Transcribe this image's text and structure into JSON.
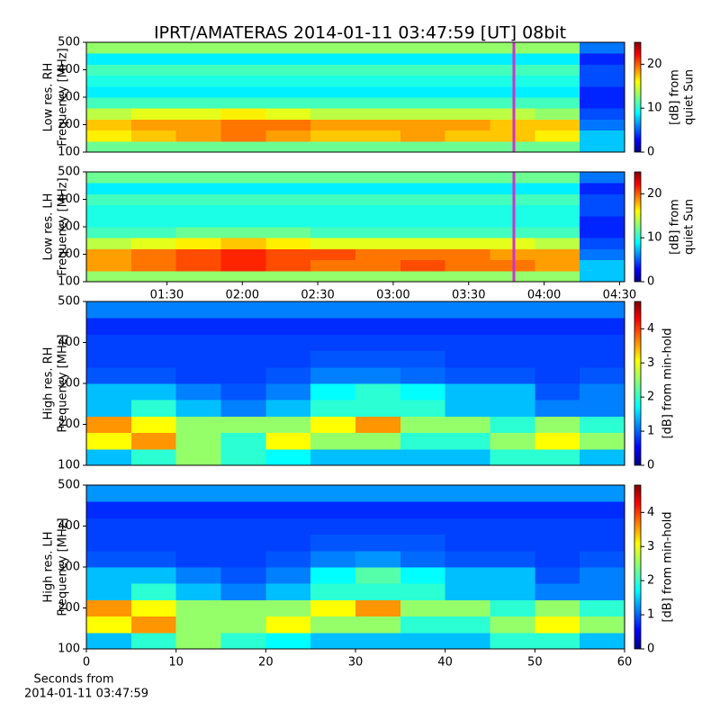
{
  "chart_data": [
    {
      "type": "heatmap",
      "title": "IPRT/AMATERAS 2014-01-11 03:47:59 [UT]   08bit",
      "ylabel": [
        "Low res. RH",
        "Frequency [MHz]"
      ],
      "xlim": [
        58,
        272
      ],
      "ylim": [
        100,
        500
      ],
      "yticks": [
        100,
        200,
        300,
        400,
        500
      ],
      "marker": {
        "value": 227.98,
        "color": "#cc33cc"
      },
      "colorbar": {
        "label": [
          "[dB] from",
          "quiet Sun"
        ],
        "clim": [
          0,
          25
        ],
        "ticks": [
          0,
          10,
          20
        ]
      },
      "z": [
        [
          12,
          12,
          12,
          12,
          12,
          12,
          12,
          12,
          12,
          12,
          12,
          8
        ],
        [
          16,
          17,
          18,
          19,
          18,
          17,
          17,
          18,
          17,
          17,
          16,
          8
        ],
        [
          17,
          18,
          18,
          19,
          19,
          18,
          18,
          18,
          18,
          17,
          17,
          6
        ],
        [
          14,
          15,
          15,
          16,
          15,
          14,
          14,
          14,
          14,
          14,
          13,
          5
        ],
        [
          11,
          11,
          11,
          11,
          11,
          11,
          11,
          11,
          11,
          11,
          11,
          4
        ],
        [
          9,
          9,
          9,
          9,
          9,
          9,
          9,
          9,
          9,
          9,
          9,
          4
        ],
        [
          10,
          10,
          10,
          10,
          10,
          10,
          10,
          10,
          10,
          10,
          10,
          5
        ],
        [
          11,
          11,
          11,
          11,
          11,
          11,
          11,
          11,
          11,
          11,
          11,
          5
        ],
        [
          9,
          9,
          9,
          9,
          9,
          9,
          9,
          9,
          9,
          9,
          9,
          4
        ],
        [
          13,
          13,
          13,
          13,
          13,
          13,
          13,
          13,
          13,
          13,
          13,
          6
        ]
      ]
    },
    {
      "type": "heatmap",
      "ylabel": [
        "Low res. LH",
        "Frequency [MHz]"
      ],
      "xlim": [
        58,
        272
      ],
      "ylim": [
        100,
        500
      ],
      "yticks": [
        100,
        200,
        300,
        400,
        500
      ],
      "xticks": [
        {
          "value": 90,
          "label": "01:30"
        },
        {
          "value": 120,
          "label": "02:00"
        },
        {
          "value": 150,
          "label": "02:30"
        },
        {
          "value": 180,
          "label": "03:00"
        },
        {
          "value": 210,
          "label": "03:30"
        },
        {
          "value": 240,
          "label": "04:00"
        },
        {
          "value": 270,
          "label": "04:30"
        }
      ],
      "marker": {
        "value": 227.98,
        "color": "#cc33cc"
      },
      "colorbar": {
        "label": [
          "[dB] from",
          "quiet Sun"
        ],
        "clim": [
          0,
          25
        ],
        "ticks": [
          0,
          10,
          20
        ]
      },
      "z": [
        [
          13,
          13,
          13,
          13,
          13,
          13,
          13,
          13,
          13,
          13,
          13,
          8
        ],
        [
          18,
          19,
          20,
          21,
          20,
          19,
          19,
          20,
          19,
          19,
          18,
          8
        ],
        [
          18,
          19,
          20,
          21,
          20,
          20,
          19,
          19,
          19,
          18,
          18,
          6
        ],
        [
          14,
          15,
          16,
          17,
          16,
          15,
          15,
          15,
          15,
          15,
          14,
          5
        ],
        [
          11,
          11,
          12,
          12,
          12,
          11,
          11,
          11,
          11,
          11,
          11,
          4
        ],
        [
          10,
          10,
          10,
          10,
          10,
          10,
          10,
          10,
          10,
          10,
          10,
          4
        ],
        [
          10,
          10,
          10,
          10,
          10,
          10,
          10,
          10,
          10,
          10,
          10,
          5
        ],
        [
          11,
          11,
          11,
          11,
          11,
          11,
          11,
          11,
          11,
          11,
          11,
          5
        ],
        [
          9,
          9,
          9,
          9,
          9,
          9,
          9,
          9,
          9,
          9,
          9,
          4
        ],
        [
          12,
          12,
          12,
          12,
          12,
          12,
          12,
          12,
          12,
          12,
          12,
          6
        ]
      ]
    },
    {
      "type": "heatmap",
      "ylabel": [
        "High res. RH",
        "Frequency [MHz]"
      ],
      "xlim": [
        0,
        60
      ],
      "ylim": [
        100,
        500
      ],
      "yticks": [
        100,
        200,
        300,
        400,
        500
      ],
      "colorbar": {
        "label": [
          "[dB] from min-hold"
        ],
        "clim": [
          0,
          4.8
        ],
        "ticks": [
          0,
          1,
          2,
          3,
          4
        ]
      },
      "z": [
        [
          1.5,
          2.0,
          2.5,
          2.0,
          1.8,
          1.5,
          1.5,
          1.5,
          1.5,
          2.0,
          2.0,
          1.5
        ],
        [
          3.0,
          3.5,
          2.5,
          2.0,
          3.0,
          2.5,
          2.5,
          2.0,
          2.0,
          2.5,
          3.0,
          2.5
        ],
        [
          3.5,
          3.0,
          2.5,
          2.5,
          2.5,
          3.0,
          3.5,
          2.5,
          2.5,
          2.0,
          2.5,
          2.0
        ],
        [
          1.5,
          2.0,
          1.5,
          1.2,
          1.5,
          2.0,
          2.0,
          2.0,
          1.5,
          1.5,
          1.2,
          1.2
        ],
        [
          1.5,
          1.5,
          1.2,
          1.0,
          1.2,
          1.8,
          2.0,
          1.8,
          1.5,
          1.5,
          1.0,
          1.2
        ],
        [
          1.0,
          1.0,
          0.9,
          0.9,
          1.0,
          1.2,
          1.2,
          1.1,
          1.0,
          1.0,
          0.9,
          1.0
        ],
        [
          0.9,
          0.9,
          0.9,
          0.9,
          0.9,
          1.0,
          1.0,
          1.0,
          0.9,
          0.9,
          0.9,
          0.9
        ],
        [
          0.9,
          0.9,
          0.9,
          0.9,
          0.9,
          0.9,
          0.9,
          0.9,
          0.9,
          0.9,
          0.9,
          0.9
        ],
        [
          0.8,
          0.8,
          0.8,
          0.8,
          0.8,
          0.8,
          0.8,
          0.8,
          0.8,
          0.8,
          0.8,
          0.8
        ],
        [
          1.2,
          1.2,
          1.2,
          1.2,
          1.2,
          1.2,
          1.2,
          1.2,
          1.2,
          1.2,
          1.2,
          1.2
        ]
      ]
    },
    {
      "type": "heatmap",
      "ylabel": [
        "High res. LH",
        "Frequency [MHz]"
      ],
      "xlabel": [
        "Seconds from",
        "2014-01-11 03:47:59"
      ],
      "xlim": [
        0,
        60
      ],
      "ylim": [
        100,
        500
      ],
      "yticks": [
        100,
        200,
        300,
        400,
        500
      ],
      "xticks": [
        0,
        10,
        20,
        30,
        40,
        50,
        60
      ],
      "colorbar": {
        "label": [
          "[dB] from min-hold"
        ],
        "clim": [
          0,
          4.8
        ],
        "ticks": [
          0,
          1,
          2,
          3,
          4
        ]
      },
      "z": [
        [
          1.5,
          2.0,
          2.5,
          2.0,
          1.8,
          1.5,
          1.5,
          1.5,
          1.5,
          2.0,
          2.0,
          1.5
        ],
        [
          3.0,
          3.5,
          2.5,
          2.5,
          3.0,
          2.5,
          2.5,
          2.0,
          2.0,
          2.5,
          3.0,
          2.5
        ],
        [
          3.5,
          3.0,
          2.5,
          2.5,
          2.5,
          3.0,
          3.5,
          2.5,
          2.5,
          2.0,
          2.5,
          2.0
        ],
        [
          1.5,
          2.0,
          1.5,
          1.2,
          1.5,
          2.0,
          2.0,
          2.0,
          1.5,
          1.5,
          1.2,
          1.2
        ],
        [
          1.5,
          1.5,
          1.2,
          1.0,
          1.2,
          1.8,
          2.2,
          1.8,
          1.5,
          1.5,
          1.0,
          1.2
        ],
        [
          1.0,
          1.0,
          0.9,
          0.9,
          1.0,
          1.2,
          1.3,
          1.1,
          1.0,
          1.0,
          0.9,
          1.0
        ],
        [
          0.9,
          0.9,
          0.9,
          0.9,
          0.9,
          1.0,
          1.0,
          1.0,
          0.9,
          0.9,
          0.9,
          0.9
        ],
        [
          0.9,
          0.9,
          0.9,
          0.9,
          0.9,
          0.9,
          0.9,
          0.9,
          0.9,
          0.9,
          0.9,
          0.9
        ],
        [
          0.8,
          0.8,
          0.8,
          0.8,
          0.8,
          0.8,
          0.8,
          0.8,
          0.8,
          0.8,
          0.8,
          0.8
        ],
        [
          1.3,
          1.3,
          1.3,
          1.3,
          1.3,
          1.3,
          1.3,
          1.3,
          1.3,
          1.3,
          1.3,
          1.3
        ]
      ]
    }
  ]
}
